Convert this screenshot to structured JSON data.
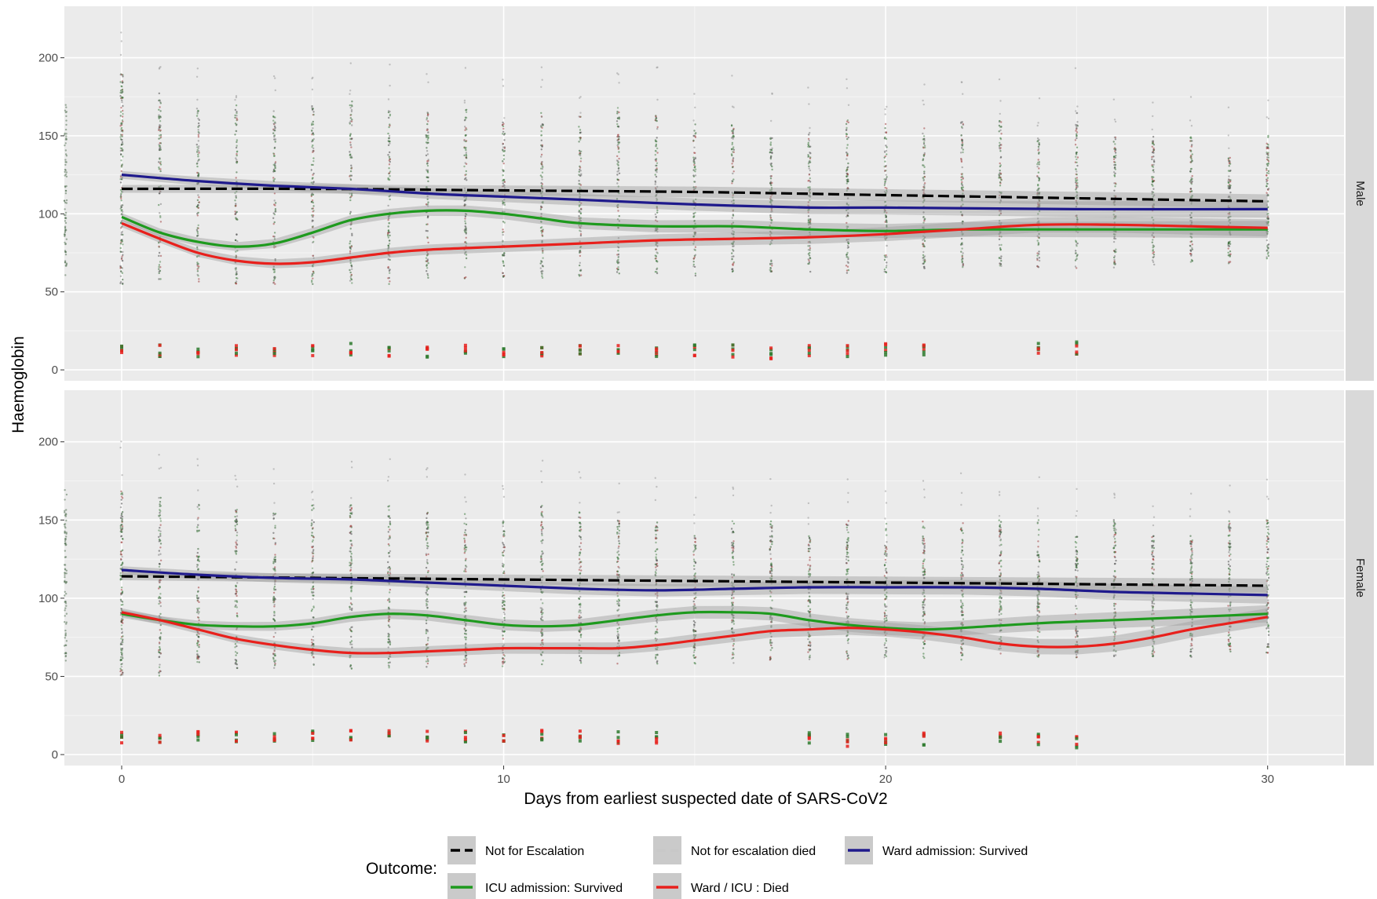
{
  "chart_data": {
    "type": "line",
    "xlabel": "Days from earliest suspected date of SARS-CoV2",
    "ylabel": "Haemoglobin",
    "xlim": [
      -1.5,
      32.0
    ],
    "ylim": [
      -7,
      233
    ],
    "x_ticks": [
      0,
      10,
      20,
      30
    ],
    "y_ticks": [
      0,
      50,
      100,
      150,
      200
    ],
    "grid": true,
    "legend": {
      "title": "Outcome:",
      "position": "bottom",
      "entries": [
        {
          "label": "Not for Escalation",
          "color": "#000000",
          "dash": true
        },
        {
          "label": "Not for escalation died",
          "color": "#c8c8c8",
          "dash": true
        },
        {
          "label": "Ward admission: Survived",
          "color": "#1f1a8c",
          "dash": false
        },
        {
          "label": "ICU admission: Survived",
          "color": "#1e9a1e",
          "dash": false
        },
        {
          "label": "Ward / ICU : Died",
          "color": "#e8201c",
          "dash": false
        }
      ]
    },
    "panels": [
      {
        "strip": "Male",
        "series": [
          {
            "name": "Not for Escalation",
            "color": "#000000",
            "dash": true,
            "x": [
              0,
              5,
              10,
              15,
              20,
              25,
              30
            ],
            "y": [
              116,
              116,
              115,
              114,
              112,
              110,
              108
            ]
          },
          {
            "name": "Ward admission: Survived",
            "color": "#1f1a8c",
            "dash": false,
            "x": [
              0,
              2,
              4,
              6,
              8,
              10,
              12,
              15,
              18,
              20,
              25,
              30
            ],
            "y": [
              125,
              121,
              118,
              116,
              113,
              111,
              109,
              106,
              104,
              104,
              103,
              103
            ]
          },
          {
            "name": "ICU admission: Survived",
            "color": "#1e9a1e",
            "dash": false,
            "x": [
              0,
              1,
              2,
              3,
              4,
              5,
              6,
              7,
              8,
              9,
              10,
              11,
              12,
              14,
              16,
              18,
              20,
              22,
              24,
              26,
              28,
              30
            ],
            "y": [
              98,
              88,
              82,
              79,
              81,
              88,
              96,
              100,
              102,
              102,
              100,
              97,
              94,
              92,
              92,
              90,
              89,
              90,
              90,
              90,
              90,
              90
            ]
          },
          {
            "name": "Ward / ICU : Died",
            "color": "#e8201c",
            "dash": false,
            "x": [
              0,
              1,
              2,
              3,
              4,
              5,
              6,
              7,
              8,
              10,
              12,
              14,
              16,
              18,
              20,
              22,
              24,
              26,
              28,
              30
            ],
            "y": [
              94,
              84,
              75,
              70,
              68,
              69,
              72,
              75,
              77,
              79,
              81,
              83,
              84,
              85,
              87,
              90,
              93,
              93,
              92,
              91
            ]
          }
        ],
        "band_x": [
          0,
          5,
          10,
          15,
          20,
          25,
          30
        ],
        "band_y": [
          116,
          116,
          115,
          114,
          112,
          110,
          108
        ],
        "low_cluster_x": [
          0,
          1,
          2,
          3,
          4,
          5,
          6,
          7,
          8,
          9,
          10,
          11,
          12,
          13,
          14,
          15,
          16,
          17,
          18,
          19,
          20,
          21,
          24,
          25
        ],
        "low_cluster_y": [
          13,
          12,
          12,
          12,
          12,
          13,
          13,
          12,
          12,
          12,
          12,
          12,
          12,
          12,
          12,
          13,
          12,
          11,
          12,
          12,
          13,
          13,
          14,
          14
        ],
        "column_tops": [
          190,
          178,
          168,
          170,
          168,
          170,
          172,
          168,
          165,
          168,
          160,
          165,
          163,
          168,
          165,
          158,
          160,
          150,
          152,
          160,
          158,
          155,
          160,
          160,
          150,
          165,
          150,
          150,
          150,
          140,
          150
        ],
        "column_bottoms": [
          55,
          58,
          55,
          55,
          55,
          55,
          55,
          55,
          58,
          58,
          58,
          58,
          60,
          60,
          60,
          60,
          62,
          62,
          62,
          62,
          62,
          65,
          65,
          65,
          65,
          65,
          65,
          65,
          65,
          68,
          70
        ]
      },
      {
        "strip": "Female",
        "series": [
          {
            "name": "Not for Escalation",
            "color": "#000000",
            "dash": true,
            "x": [
              0,
              5,
              10,
              15,
              20,
              25,
              30
            ],
            "y": [
              114,
              113,
              112,
              111,
              110,
              109,
              108
            ]
          },
          {
            "name": "Ward admission: Survived",
            "color": "#1f1a8c",
            "dash": false,
            "x": [
              0,
              2,
              4,
              6,
              8,
              10,
              12,
              14,
              16,
              18,
              20,
              22,
              24,
              26,
              28,
              30
            ],
            "y": [
              118,
              115,
              113,
              112,
              110,
              108,
              106,
              105,
              106,
              107,
              107,
              107,
              106,
              104,
              103,
              102
            ]
          },
          {
            "name": "ICU admission: Survived",
            "color": "#1e9a1e",
            "dash": false,
            "x": [
              0,
              1,
              2,
              3,
              4,
              5,
              6,
              7,
              8,
              9,
              10,
              11,
              12,
              13,
              14,
              15,
              16,
              17,
              18,
              19,
              20,
              21,
              22,
              24,
              26,
              28,
              30
            ],
            "y": [
              90,
              86,
              83,
              82,
              82,
              84,
              88,
              90,
              89,
              86,
              83,
              82,
              83,
              86,
              89,
              91,
              91,
              90,
              86,
              83,
              81,
              80,
              81,
              84,
              86,
              88,
              90
            ]
          },
          {
            "name": "Ward / ICU : Died",
            "color": "#e8201c",
            "dash": false,
            "x": [
              0,
              1,
              2,
              3,
              4,
              5,
              6,
              7,
              8,
              9,
              10,
              11,
              12,
              13,
              14,
              15,
              16,
              17,
              18,
              19,
              20,
              21,
              22,
              23,
              24,
              25,
              26,
              27,
              28,
              29,
              30
            ],
            "y": [
              91,
              86,
              80,
              74,
              70,
              67,
              65,
              65,
              66,
              67,
              68,
              68,
              68,
              68,
              70,
              73,
              76,
              79,
              80,
              81,
              80,
              78,
              75,
              71,
              69,
              69,
              71,
              75,
              80,
              84,
              88
            ]
          }
        ],
        "band_x": [
          0,
          5,
          10,
          15,
          20,
          25,
          30
        ],
        "band_y": [
          114,
          113,
          112,
          111,
          110,
          109,
          108
        ],
        "low_cluster_x": [
          0,
          1,
          2,
          3,
          4,
          5,
          6,
          7,
          8,
          9,
          10,
          11,
          12,
          13,
          14,
          18,
          19,
          20,
          21,
          23,
          24,
          25
        ],
        "low_cluster_y": [
          11,
          11,
          11,
          11,
          12,
          13,
          13,
          12,
          12,
          12,
          11,
          12,
          12,
          11,
          11,
          10,
          9,
          10,
          10,
          11,
          10,
          8
        ],
        "column_tops": [
          172,
          165,
          160,
          160,
          155,
          160,
          160,
          160,
          155,
          155,
          150,
          160,
          155,
          150,
          150,
          140,
          150,
          150,
          140,
          150,
          150,
          150,
          150,
          150,
          150,
          140,
          150,
          140,
          140,
          150,
          150
        ],
        "column_bottoms": [
          50,
          50,
          55,
          55,
          55,
          55,
          55,
          55,
          55,
          55,
          55,
          55,
          58,
          58,
          58,
          58,
          58,
          60,
          60,
          60,
          60,
          60,
          60,
          62,
          62,
          62,
          62,
          62,
          62,
          65,
          65
        ]
      }
    ]
  }
}
